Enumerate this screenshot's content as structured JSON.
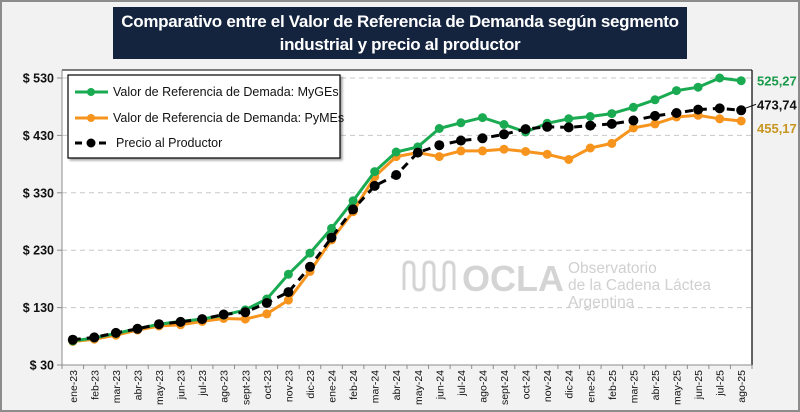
{
  "title": {
    "line1": "Comparativo entre el Valor de Referencia de Demanda según segmento",
    "line2": "industrial y precio al productor"
  },
  "watermark": {
    "brand": "OCLA",
    "line1": "Observatorio",
    "line2": "de la Cadena Láctea",
    "line3": "Argentina"
  },
  "chart_data": {
    "type": "line",
    "title": "Comparativo entre el Valor de Referencia de Demanda según segmento industrial y precio al productor",
    "xlabel": "",
    "ylabel": "",
    "ylim": [
      30,
      530
    ],
    "yticks": [
      30,
      130,
      230,
      330,
      430,
      530
    ],
    "ytick_labels": [
      "$ 30",
      "$ 130",
      "$ 230",
      "$ 330",
      "$ 430",
      "$ 530"
    ],
    "grid": "horizontal-dashed",
    "legend_position": "top-left",
    "categories": [
      "ene-23",
      "feb-23",
      "mar-23",
      "abr-23",
      "may-23",
      "jun-23",
      "jul-23",
      "ago-23",
      "sept-23",
      "oct-23",
      "nov-23",
      "dic-23",
      "ene-24",
      "feb-24",
      "mar-24",
      "abr-24",
      "may-24",
      "jun-24",
      "jul-24",
      "ago-24",
      "sept-24",
      "oct-24",
      "nov-24",
      "dic-24",
      "ene-25",
      "feb-25",
      "mar-25",
      "abr-25",
      "may-25",
      "jun-25",
      "jul-25",
      "ago-25"
    ],
    "series": [
      {
        "name": "Valor de Referencia de Demada: MyGEs",
        "color": "#1aab52",
        "style": "solid",
        "values": [
          72,
          77,
          85,
          93,
          101,
          106,
          110,
          117,
          126,
          145,
          188,
          225,
          268,
          316,
          367,
          401,
          410,
          442,
          452,
          461,
          449,
          436,
          451,
          459,
          463,
          468,
          479,
          492,
          508,
          514,
          530,
          525.27
        ],
        "end_label": "525,27"
      },
      {
        "name": "Valor de Referencia de Demanda: PyMEs",
        "color": "#f7941d",
        "style": "solid",
        "values": [
          71,
          75,
          82,
          91,
          98,
          100,
          106,
          111,
          110,
          119,
          143,
          193,
          248,
          297,
          358,
          393,
          400,
          393,
          403,
          403,
          406,
          402,
          397,
          388,
          408,
          416,
          443,
          450,
          462,
          465,
          459,
          455.17
        ],
        "end_label": "455,17"
      },
      {
        "name": "Precio al Productor",
        "color": "#000000",
        "style": "dashed",
        "values": [
          74,
          78,
          86,
          93,
          101,
          105,
          110,
          118,
          122,
          138,
          157,
          201,
          252,
          301,
          342,
          361,
          400,
          413,
          421,
          425,
          432,
          441,
          445,
          444,
          447,
          450,
          456,
          464,
          469,
          475,
          477,
          473.74
        ],
        "end_label": "473,74"
      }
    ]
  }
}
